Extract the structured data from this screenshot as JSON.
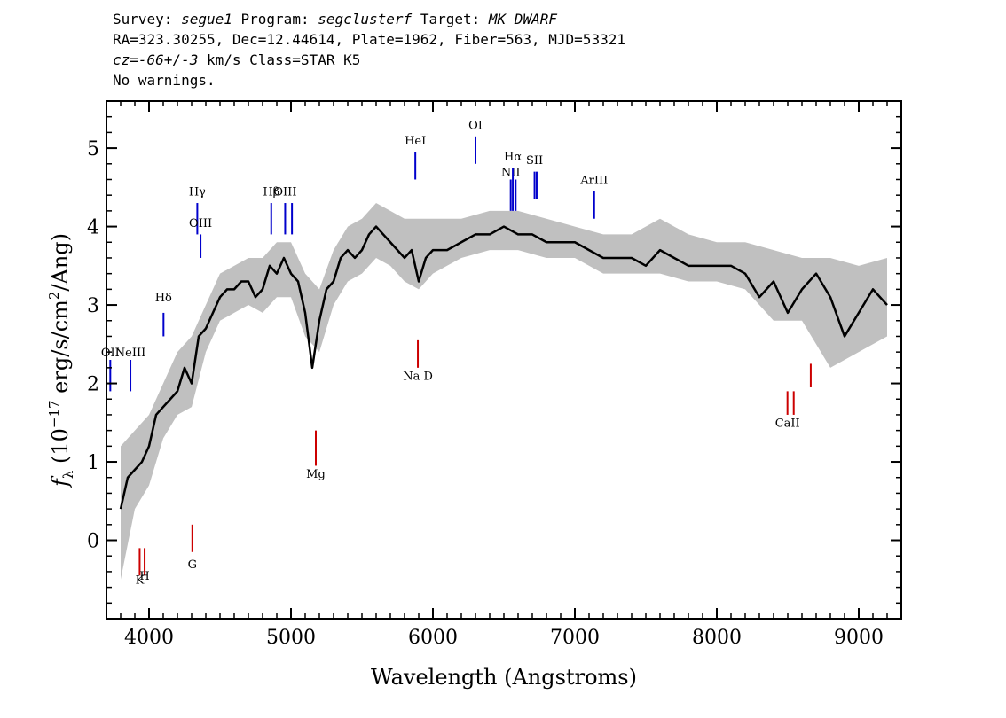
{
  "header": {
    "survey_label": "Survey:",
    "survey": "segue1",
    "program_label": "Program:",
    "program": "segclusterf",
    "target_label": "Target:",
    "target": "MK_DWARF",
    "line2": "RA=323.30255, Dec=12.44614, Plate=1962, Fiber=563, MJD=53321",
    "cz_label": "cz",
    "cz_value": "=-66+/-3",
    "cz_rest": " km/s Class=STAR K5",
    "line4": "No warnings."
  },
  "chart_data": {
    "type": "line",
    "title": "",
    "xlabel": "Wavelength (Angstroms)",
    "ylabel_prefix": "f",
    "ylabel_sub": "λ",
    "ylabel_open": " (10",
    "ylabel_exp": "−17",
    "ylabel_mid": " erg/s/cm",
    "ylabel_exp2": "2",
    "ylabel_close": "/Ang)",
    "xlim": [
      3700,
      9300
    ],
    "ylim": [
      -1.0,
      5.6
    ],
    "xticks": [
      4000,
      5000,
      6000,
      7000,
      8000,
      9000
    ],
    "yticks": [
      0,
      1,
      2,
      3,
      4,
      5
    ],
    "colors": {
      "flux": "#000000",
      "error": "#c0c0c0",
      "emission": "#0000cc",
      "absorption": "#cc0000"
    },
    "series": [
      {
        "name": "",
        "x": [
          3800,
          3850,
          3900,
          3950,
          4000,
          4050,
          4100,
          4150,
          4200,
          4250,
          4300,
          4350,
          4400,
          4450,
          4500,
          4550,
          4600,
          4650,
          4700,
          4750,
          4800,
          4850,
          4900,
          4950,
          5000,
          5050,
          5100,
          5150,
          5200,
          5250,
          5300,
          5350,
          5400,
          5450,
          5500,
          5550,
          5600,
          5650,
          5700,
          5750,
          5800,
          5850,
          5900,
          5950,
          6000,
          6100,
          6200,
          6300,
          6400,
          6500,
          6600,
          6700,
          6800,
          6900,
          7000,
          7100,
          7200,
          7300,
          7400,
          7500,
          7600,
          7700,
          7800,
          7900,
          8000,
          8100,
          8200,
          8300,
          8400,
          8500,
          8600,
          8700,
          8800,
          8900,
          9000,
          9100,
          9200
        ],
        "y": [
          0.4,
          0.8,
          0.9,
          1.0,
          1.2,
          1.6,
          1.7,
          1.8,
          1.9,
          2.2,
          2.0,
          2.6,
          2.7,
          2.9,
          3.1,
          3.2,
          3.2,
          3.3,
          3.3,
          3.1,
          3.2,
          3.5,
          3.4,
          3.6,
          3.4,
          3.3,
          2.9,
          2.2,
          2.8,
          3.2,
          3.3,
          3.6,
          3.7,
          3.6,
          3.7,
          3.9,
          4.0,
          3.9,
          3.8,
          3.7,
          3.6,
          3.7,
          3.3,
          3.6,
          3.7,
          3.7,
          3.8,
          3.9,
          3.9,
          4.0,
          3.9,
          3.9,
          3.8,
          3.8,
          3.8,
          3.7,
          3.6,
          3.6,
          3.6,
          3.5,
          3.7,
          3.6,
          3.5,
          3.5,
          3.5,
          3.5,
          3.4,
          3.1,
          3.3,
          2.9,
          3.2,
          3.4,
          3.1,
          2.6,
          2.9,
          3.2,
          3.0
        ]
      }
    ],
    "error_band": {
      "x": [
        3800,
        3900,
        4000,
        4100,
        4200,
        4300,
        4400,
        4500,
        4600,
        4700,
        4800,
        4900,
        5000,
        5100,
        5200,
        5300,
        5400,
        5500,
        5600,
        5700,
        5800,
        5900,
        6000,
        6200,
        6400,
        6600,
        6800,
        7000,
        7200,
        7400,
        7600,
        7800,
        8000,
        8200,
        8400,
        8600,
        8800,
        9000,
        9200
      ],
      "lower": [
        -0.5,
        0.4,
        0.7,
        1.3,
        1.6,
        1.7,
        2.4,
        2.8,
        2.9,
        3.0,
        2.9,
        3.1,
        3.1,
        2.6,
        2.4,
        3.0,
        3.3,
        3.4,
        3.6,
        3.5,
        3.3,
        3.2,
        3.4,
        3.6,
        3.7,
        3.7,
        3.6,
        3.6,
        3.4,
        3.4,
        3.4,
        3.3,
        3.3,
        3.2,
        2.8,
        2.8,
        2.2,
        2.4,
        2.6
      ],
      "upper": [
        1.2,
        1.4,
        1.6,
        2.0,
        2.4,
        2.6,
        3.0,
        3.4,
        3.5,
        3.6,
        3.6,
        3.8,
        3.8,
        3.4,
        3.2,
        3.7,
        4.0,
        4.1,
        4.3,
        4.2,
        4.1,
        4.1,
        4.1,
        4.1,
        4.2,
        4.2,
        4.1,
        4.0,
        3.9,
        3.9,
        4.1,
        3.9,
        3.8,
        3.8,
        3.7,
        3.6,
        3.6,
        3.5,
        3.6
      ]
    },
    "lines": [
      {
        "label": "OII",
        "x": 3727,
        "y0": 1.9,
        "y1": 2.3,
        "type": "emission",
        "ly": 2.3
      },
      {
        "label": "NeIII",
        "x": 3869,
        "y0": 1.9,
        "y1": 2.3,
        "type": "emission",
        "ly": 2.3
      },
      {
        "label": "Hδ",
        "x": 4102,
        "y0": 2.6,
        "y1": 2.9,
        "type": "emission",
        "ly": 3.0
      },
      {
        "label": "Hγ",
        "x": 4340,
        "y0": 3.9,
        "y1": 4.3,
        "type": "emission",
        "ly": 4.35
      },
      {
        "label": "OIII",
        "x": 4363,
        "y0": 3.6,
        "y1": 3.9,
        "type": "emission",
        "ly": 3.95
      },
      {
        "label": "Hβ",
        "x": 4861,
        "y0": 3.9,
        "y1": 4.3,
        "type": "emission",
        "ly": 4.35
      },
      {
        "label": "OIII",
        "x": 4959,
        "y0": 3.9,
        "y1": 4.3,
        "type": "emission",
        "ly": 4.35
      },
      {
        "label": "",
        "x": 5007,
        "y0": 3.9,
        "y1": 4.3,
        "type": "emission",
        "ly": 4.35
      },
      {
        "label": "HeI",
        "x": 5876,
        "y0": 4.6,
        "y1": 4.95,
        "type": "emission",
        "ly": 5.0
      },
      {
        "label": "OI",
        "x": 6300,
        "y0": 4.8,
        "y1": 5.15,
        "type": "emission",
        "ly": 5.2
      },
      {
        "label": "NII",
        "x": 6548,
        "y0": 4.2,
        "y1": 4.6,
        "type": "emission",
        "ly": 4.6
      },
      {
        "label": "Hα",
        "x": 6563,
        "y0": 4.2,
        "y1": 4.75,
        "type": "emission",
        "ly": 4.8
      },
      {
        "label": "",
        "x": 6583,
        "y0": 4.2,
        "y1": 4.6,
        "type": "emission",
        "ly": 4.6
      },
      {
        "label": "SII",
        "x": 6716,
        "y0": 4.35,
        "y1": 4.7,
        "type": "emission",
        "ly": 4.75
      },
      {
        "label": "",
        "x": 6731,
        "y0": 4.35,
        "y1": 4.7,
        "type": "emission",
        "ly": 4.75
      },
      {
        "label": "ArIII",
        "x": 7136,
        "y0": 4.1,
        "y1": 4.45,
        "type": "emission",
        "ly": 4.5
      },
      {
        "label": "K",
        "x": 3934,
        "y0": -0.45,
        "y1": -0.1,
        "type": "absorption",
        "ly": -0.6
      },
      {
        "label": "H",
        "x": 3969,
        "y0": -0.45,
        "y1": -0.1,
        "type": "absorption",
        "ly": -0.55
      },
      {
        "label": "G",
        "x": 4305,
        "y0": -0.15,
        "y1": 0.2,
        "type": "absorption",
        "ly": -0.4
      },
      {
        "label": "Mg",
        "x": 5175,
        "y0": 0.95,
        "y1": 1.4,
        "type": "absorption",
        "ly": 0.75
      },
      {
        "label": "Na D",
        "x": 5894,
        "y0": 2.2,
        "y1": 2.55,
        "type": "absorption",
        "ly": 2.0
      },
      {
        "label": "CaII",
        "x": 8498,
        "y0": 1.6,
        "y1": 1.9,
        "type": "absorption",
        "ly": 1.4
      },
      {
        "label": "",
        "x": 8542,
        "y0": 1.6,
        "y1": 1.9,
        "type": "absorption",
        "ly": 1.4
      },
      {
        "label": "",
        "x": 8662,
        "y0": 1.95,
        "y1": 2.25,
        "type": "absorption",
        "ly": 1.4
      }
    ],
    "grid": false,
    "legend": "none"
  }
}
